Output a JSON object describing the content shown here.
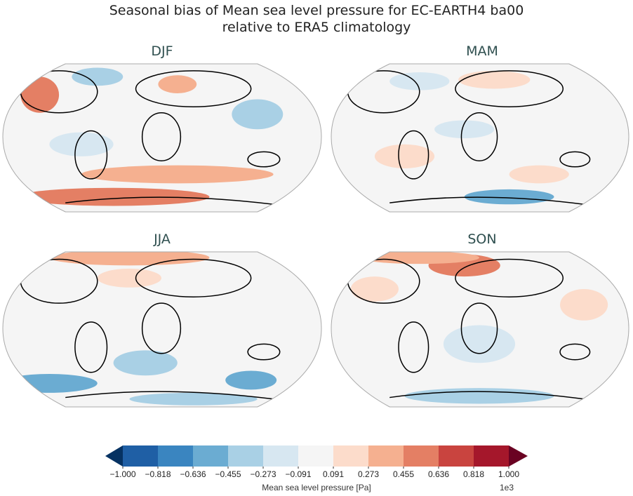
{
  "title_line1": "Seasonal bias of Mean sea level pressure for EC-EARTH4 ba00",
  "title_line2": "relative to ERA5 climatology",
  "panels": [
    {
      "season": "DJF"
    },
    {
      "season": "MAM"
    },
    {
      "season": "JJA"
    },
    {
      "season": "SON"
    }
  ],
  "colorbar": {
    "label": "Mean sea level pressure [Pa]",
    "multiplier": "1e3",
    "ticks": [
      "−1.000",
      "−0.818",
      "−0.636",
      "−0.455",
      "−0.273",
      "−0.091",
      "0.091",
      "0.273",
      "0.455",
      "0.636",
      "0.818",
      "1.000"
    ],
    "colors": [
      "#1f5fa5",
      "#3a85c0",
      "#6bacd2",
      "#a9d0e5",
      "#d7e7f1",
      "#f5f5f5",
      "#fcdccb",
      "#f5b090",
      "#e47f64",
      "#c9443f",
      "#a5172b"
    ],
    "under_color": "#063262",
    "over_color": "#6a0222"
  }
}
